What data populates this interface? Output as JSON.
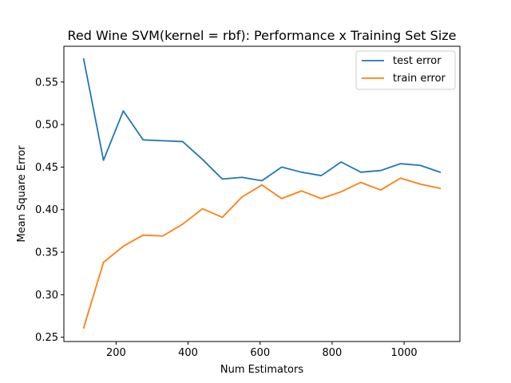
{
  "chart_data": {
    "type": "line",
    "title": "Red Wine SVM(kernel = rbf): Performance x Training Set Size",
    "xlabel": "Num Estimators",
    "ylabel": "Mean Square Error",
    "xlim": [
      55,
      1155
    ],
    "ylim": [
      0.245,
      0.592
    ],
    "xticks": [
      200,
      400,
      600,
      800,
      1000
    ],
    "yticks": [
      0.25,
      0.3,
      0.35,
      0.4,
      0.45,
      0.5,
      0.55
    ],
    "ytick_labels": [
      "0.25",
      "0.30",
      "0.35",
      "0.40",
      "0.45",
      "0.50",
      "0.55"
    ],
    "grid": false,
    "legend_position": "top-right",
    "x": [
      110,
      165,
      220,
      275,
      330,
      385,
      440,
      495,
      550,
      605,
      660,
      715,
      770,
      825,
      880,
      935,
      990,
      1045,
      1100
    ],
    "series": [
      {
        "name": "test error",
        "color": "#1f77b4",
        "values": [
          0.577,
          0.458,
          0.516,
          0.482,
          0.481,
          0.48,
          0.459,
          0.436,
          0.438,
          0.434,
          0.45,
          0.444,
          0.44,
          0.456,
          0.444,
          0.446,
          0.454,
          0.452,
          0.444
        ]
      },
      {
        "name": "train error",
        "color": "#ff7f0e",
        "values": [
          0.261,
          0.338,
          0.357,
          0.37,
          0.369,
          0.383,
          0.401,
          0.391,
          0.415,
          0.429,
          0.413,
          0.422,
          0.413,
          0.421,
          0.432,
          0.423,
          0.437,
          0.43,
          0.425
        ]
      }
    ]
  }
}
